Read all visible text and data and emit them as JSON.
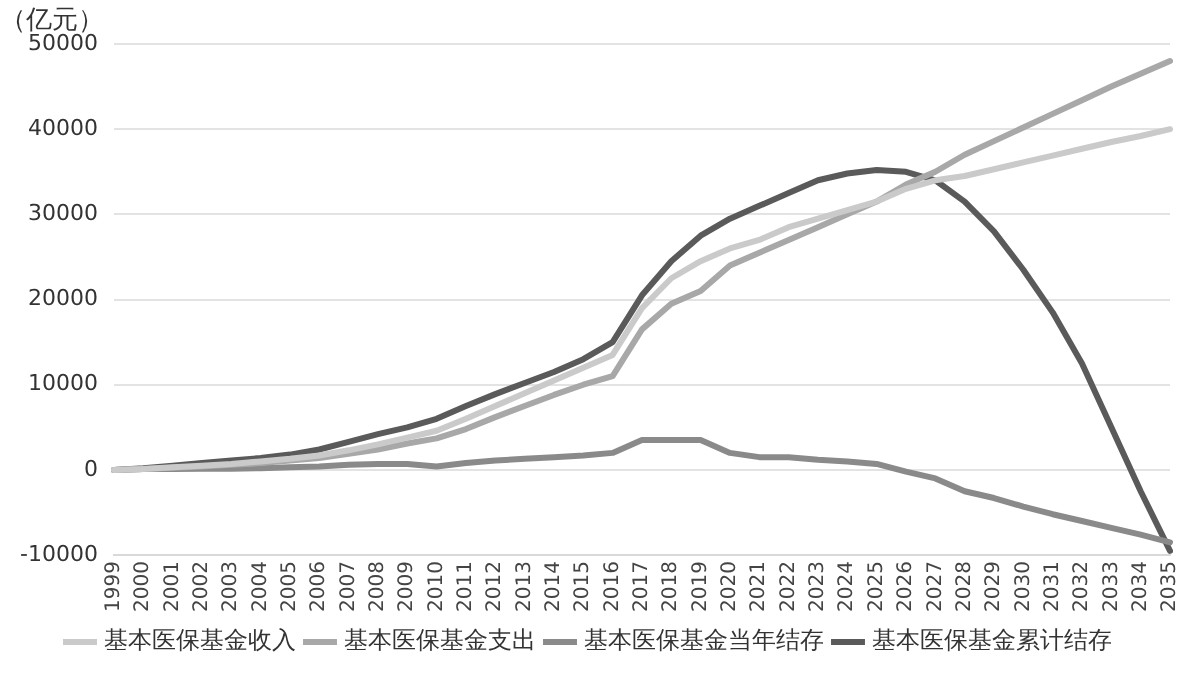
{
  "chart_data": {
    "type": "line",
    "ylabel": "（亿元）",
    "categories": [
      "1999",
      "2000",
      "2001",
      "2002",
      "2003",
      "2004",
      "2005",
      "2006",
      "2007",
      "2008",
      "2009",
      "2010",
      "2011",
      "2012",
      "2013",
      "2014",
      "2015",
      "2016",
      "2017",
      "2018",
      "2019",
      "2020",
      "2021",
      "2022",
      "2023",
      "2024",
      "2025",
      "2026",
      "2027",
      "2028",
      "2029",
      "2030",
      "2031",
      "2032",
      "2033",
      "2034",
      "2035"
    ],
    "series": [
      {
        "name": "基本医保基金收入",
        "color": "#cacaca",
        "values": [
          0,
          100,
          300,
          500,
          700,
          1000,
          1300,
          1700,
          2300,
          3000,
          3800,
          4600,
          6000,
          7500,
          9000,
          10500,
          12000,
          13500,
          19000,
          22500,
          24500,
          26000,
          27000,
          28500,
          29500,
          30500,
          31500,
          33000,
          34000,
          34500,
          35300,
          36100,
          36900,
          37700,
          38500,
          39200,
          40000
        ]
      },
      {
        "name": "基本医保基金支出",
        "color": "#a8a8a8",
        "values": [
          0,
          100,
          250,
          400,
          600,
          800,
          1100,
          1400,
          1900,
          2400,
          3100,
          3700,
          4800,
          6200,
          7500,
          8800,
          10000,
          11000,
          16500,
          19500,
          21000,
          24000,
          25500,
          27000,
          28500,
          30000,
          31500,
          33500,
          35000,
          37000,
          38600,
          40200,
          41800,
          43400,
          45000,
          46500,
          48000
        ]
      },
      {
        "name": "基本医保基金当年结存",
        "color": "#8a8a8a",
        "values": [
          0,
          100,
          100,
          150,
          150,
          200,
          300,
          400,
          600,
          700,
          700,
          400,
          800,
          1100,
          1300,
          1500,
          1700,
          2000,
          3500,
          3500,
          3500,
          2000,
          1500,
          1500,
          1200,
          1000,
          700,
          -200,
          -1000,
          -2500,
          -3300,
          -4300,
          -5200,
          -6000,
          -6800,
          -7600,
          -8500
        ]
      },
      {
        "name": "基本医保基金累计结存",
        "color": "#5a5a5a",
        "values": [
          0,
          200,
          500,
          800,
          1100,
          1400,
          1800,
          2400,
          3300,
          4200,
          5000,
          6000,
          7500,
          8900,
          10200,
          11500,
          13000,
          15000,
          20500,
          24500,
          27500,
          29500,
          31000,
          32500,
          34000,
          34800,
          35200,
          35000,
          34000,
          31500,
          28000,
          23500,
          18500,
          12500,
          5000,
          -2500,
          -9500
        ]
      }
    ],
    "ylim": [
      -10000,
      50000
    ],
    "yticks": [
      -10000,
      0,
      10000,
      20000,
      30000,
      40000,
      50000
    ],
    "grid": "y",
    "legend": "bottom",
    "marker": "none",
    "line_style": "solid"
  }
}
